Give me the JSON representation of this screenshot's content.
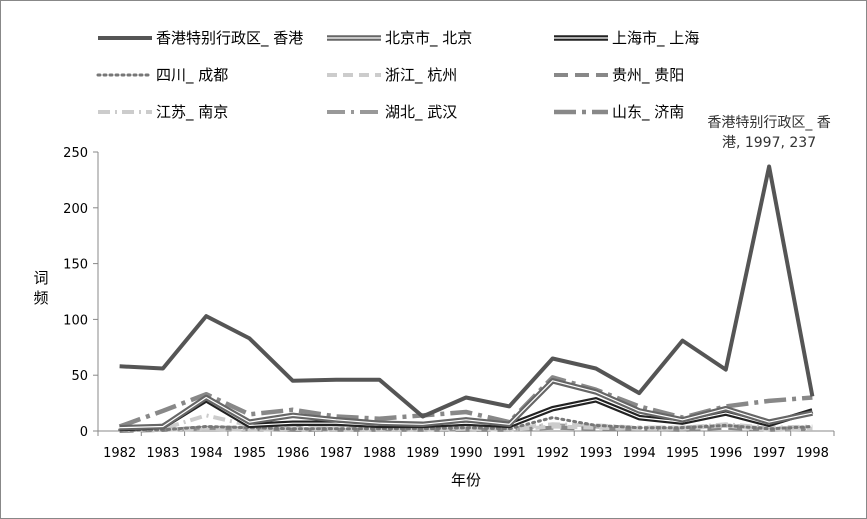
{
  "chart_data": {
    "type": "line",
    "title": "",
    "xlabel": "年份",
    "ylabel": "词频",
    "ylim": [
      0,
      250
    ],
    "yticks": [
      0,
      50,
      100,
      150,
      200,
      250
    ],
    "categories": [
      "1982",
      "1983",
      "1984",
      "1985",
      "1986",
      "1987",
      "1988",
      "1989",
      "1990",
      "1991",
      "1992",
      "1993",
      "1994",
      "1995",
      "1996",
      "1997",
      "1998"
    ],
    "grid": false,
    "legend_position": "top",
    "series": [
      {
        "name": "香港特别行政区_ 香港",
        "style": "solid-thick",
        "color": "#555555",
        "values": [
          58,
          56,
          103,
          83,
          45,
          46,
          46,
          13,
          30,
          22,
          65,
          56,
          34,
          81,
          55,
          237,
          31
        ]
      },
      {
        "name": "北京市_ 北京",
        "style": "double",
        "color": "#666666",
        "values": [
          3,
          4,
          30,
          8,
          14,
          10,
          7,
          6,
          10,
          6,
          45,
          35,
          18,
          10,
          20,
          8,
          16
        ]
      },
      {
        "name": "上海市_ 上海",
        "style": "double",
        "color": "#222222",
        "values": [
          2,
          4,
          28,
          5,
          7,
          7,
          5,
          5,
          7,
          5,
          20,
          28,
          12,
          8,
          16,
          6,
          18
        ]
      },
      {
        "name": "四川_ 成都",
        "style": "dotted",
        "color": "#777777",
        "values": [
          1,
          1,
          4,
          3,
          2,
          2,
          2,
          2,
          3,
          2,
          12,
          5,
          3,
          3,
          5,
          2,
          4
        ]
      },
      {
        "name": "浙江_ 杭州",
        "style": "dashed",
        "color": "#cccccc",
        "values": [
          1,
          1,
          2,
          1,
          2,
          1,
          1,
          1,
          2,
          1,
          4,
          3,
          2,
          2,
          5,
          1,
          2
        ]
      },
      {
        "name": "贵州_ 贵阳",
        "style": "dashed-long",
        "color": "#888888",
        "values": [
          0,
          1,
          3,
          2,
          1,
          1,
          1,
          1,
          1,
          1,
          3,
          2,
          2,
          1,
          3,
          1,
          2
        ]
      },
      {
        "name": "江苏_ 南京",
        "style": "dash-dot",
        "color": "#cccccc",
        "values": [
          1,
          2,
          14,
          5,
          4,
          3,
          3,
          2,
          3,
          2,
          6,
          5,
          3,
          3,
          6,
          3,
          4
        ]
      },
      {
        "name": "湖北_ 武汉",
        "style": "long-dash-dot",
        "color": "#999999",
        "values": [
          1,
          1,
          3,
          3,
          3,
          2,
          2,
          2,
          2,
          2,
          5,
          4,
          3,
          3,
          5,
          2,
          3
        ]
      },
      {
        "name": "山东_ 济南",
        "style": "dash-dot-thick",
        "color": "#888888",
        "values": [
          4,
          18,
          33,
          15,
          19,
          13,
          11,
          14,
          17,
          8,
          48,
          37,
          22,
          12,
          22,
          27,
          30
        ]
      }
    ],
    "annotations": [
      {
        "series": 0,
        "category": "1997",
        "line1": "香港特别行政区_ 香",
        "line2": "港, 1997, 237"
      }
    ]
  }
}
